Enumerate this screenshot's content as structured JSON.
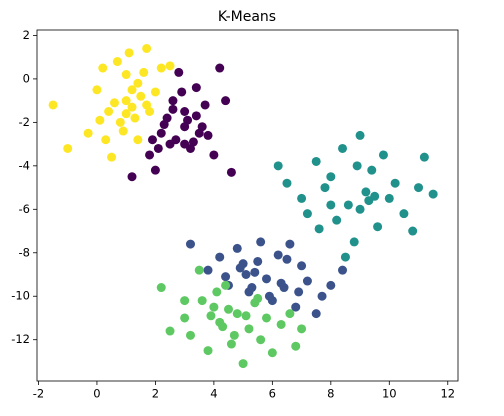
{
  "chart_data": {
    "type": "scatter",
    "title": "K-Means",
    "xlim": [
      -2.05,
      12.35
    ],
    "ylim": [
      -13.9,
      2.25
    ],
    "xticks": [
      -2,
      0,
      2,
      4,
      6,
      8,
      10,
      12
    ],
    "yticks": [
      -12,
      -10,
      -8,
      -6,
      -4,
      -2,
      0,
      2
    ],
    "series": [
      {
        "color": "#fde725",
        "x": [
          -1.5,
          -1,
          -0.3,
          0,
          0.2,
          0.4,
          0.5,
          0.7,
          0.8,
          1,
          1,
          1.1,
          1.2,
          1.3,
          1.4,
          1.5,
          1.6,
          1.7,
          1.8,
          2,
          2.2,
          0.6,
          0.9,
          1.2,
          0.3,
          1.4,
          2.5,
          1.0,
          0.1,
          1.7
        ],
        "y": [
          -1.2,
          -3.2,
          -2.5,
          -0.5,
          0.5,
          -1.5,
          -3.6,
          0.8,
          -2,
          -1,
          0.2,
          1.2,
          -0.5,
          -1.8,
          -2.8,
          -0.8,
          0.3,
          1.4,
          -1.5,
          -0.6,
          0.5,
          -1.1,
          -2.4,
          -1.3,
          -2.8,
          -0.2,
          0.6,
          -1.6,
          -1.9,
          -1.2
        ]
      },
      {
        "color": "#440154",
        "x": [
          1.2,
          1.8,
          2,
          2.2,
          2.4,
          2.5,
          2.6,
          2.8,
          3,
          3,
          3.2,
          3.4,
          3.5,
          3.7,
          4,
          4.2,
          4.6,
          2.7,
          3.1,
          2.3,
          3.3,
          2.9,
          3.6,
          1.9,
          2.6,
          3.8,
          4.4,
          3.0,
          2.1,
          3.4
        ],
        "y": [
          -4.5,
          -3.5,
          -4.2,
          -2.5,
          -1.8,
          -3,
          -1,
          0.3,
          -2.2,
          -1.5,
          -3.2,
          -0.4,
          -2.5,
          -1.2,
          -3.5,
          0.5,
          -4.3,
          -2.8,
          -1.9,
          -2.1,
          -2.9,
          -0.6,
          -2.2,
          -2.8,
          -1.4,
          -2.6,
          -1.0,
          -3.0,
          -3.2,
          -1.7
        ]
      },
      {
        "color": "#21918c",
        "x": [
          6.2,
          6.5,
          7,
          7.2,
          7.5,
          7.8,
          8,
          8.2,
          8.4,
          8.6,
          8.8,
          9,
          9.2,
          9.4,
          9.6,
          9.8,
          10,
          10.2,
          10.5,
          11,
          11.5,
          11.2,
          8.5,
          9.0,
          8.0,
          9.5,
          7.6,
          8.9,
          9.3,
          10.8
        ],
        "y": [
          -4,
          -4.8,
          -5.5,
          -6.2,
          -3.8,
          -5,
          -4.5,
          -6.5,
          -3.2,
          -5.8,
          -7.5,
          -2.6,
          -5.2,
          -4.2,
          -6.8,
          -3.5,
          -5.5,
          -4.8,
          -6.2,
          -5,
          -5.3,
          -3.6,
          -8.2,
          -6.0,
          -5.8,
          -5.4,
          -6.9,
          -4.0,
          -5.6,
          -7.0
        ]
      },
      {
        "color": "#3b528b",
        "x": [
          3.2,
          3.8,
          4.2,
          4.5,
          4.8,
          5,
          5.2,
          5.4,
          5.6,
          5.8,
          6,
          6.2,
          6.4,
          6.6,
          6.8,
          7,
          7.2,
          7.5,
          8,
          8.4,
          5.1,
          5.5,
          4.9,
          6.3,
          6.9,
          5.9,
          4.4,
          7.7,
          6.5,
          5.3
        ],
        "y": [
          -7.6,
          -8.8,
          -8.2,
          -9.5,
          -7.8,
          -8.5,
          -9.8,
          -8.9,
          -7.5,
          -9.2,
          -10.2,
          -8.1,
          -9.6,
          -7.6,
          -10.5,
          -8.6,
          -9.3,
          -10.8,
          -9.5,
          -8.8,
          -9.0,
          -8.4,
          -8.7,
          -9.4,
          -9.8,
          -10.0,
          -9.1,
          -10.0,
          -8.3,
          -9.6
        ]
      },
      {
        "color": "#5ec962",
        "x": [
          2.2,
          2.5,
          3,
          3.2,
          3.5,
          3.8,
          4,
          4.2,
          4.4,
          4.6,
          4.8,
          5,
          5.2,
          5.4,
          5.6,
          5.8,
          6,
          6.3,
          6.6,
          7,
          3.6,
          4.1,
          4.5,
          5.1,
          4.3,
          3.9,
          4.7,
          5.5,
          6.8,
          3.0
        ],
        "y": [
          -9.6,
          -11.6,
          -10.2,
          -11.8,
          -8.8,
          -12.5,
          -10.5,
          -11.2,
          -9.5,
          -12.2,
          -10.8,
          -13.1,
          -11.5,
          -10.3,
          -12,
          -11,
          -12.6,
          -11.3,
          -10.8,
          -11.5,
          -10.2,
          -9.8,
          -10.6,
          -10.9,
          -11.4,
          -10.9,
          -11.8,
          -10.1,
          -12.3,
          -11.0
        ]
      }
    ]
  }
}
